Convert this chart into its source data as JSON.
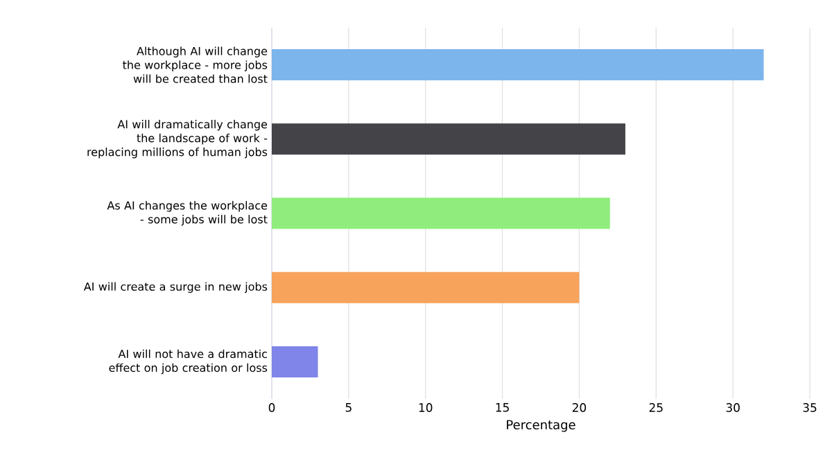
{
  "chart_data": {
    "type": "bar",
    "orientation": "horizontal",
    "xlabel": "Percentage",
    "categories": [
      "Although AI will change the workplace - more jobs will be created than lost",
      "AI will dramatically change the landscape of work -replacing millions of human jobs",
      "As AI changes the workplace - some jobs will be lost",
      "AI will create a surge in new jobs",
      "AI will not have a dramatic effect on job creation or loss"
    ],
    "values": [
      32,
      23,
      22,
      20,
      3
    ],
    "colors": [
      "#7cb5ec",
      "#434348",
      "#90ed7d",
      "#f7a35c",
      "#8085e9"
    ],
    "xlim": [
      0,
      35
    ],
    "xticks": [
      0,
      5,
      10,
      15,
      20,
      25,
      30,
      35
    ],
    "grid": "x"
  }
}
